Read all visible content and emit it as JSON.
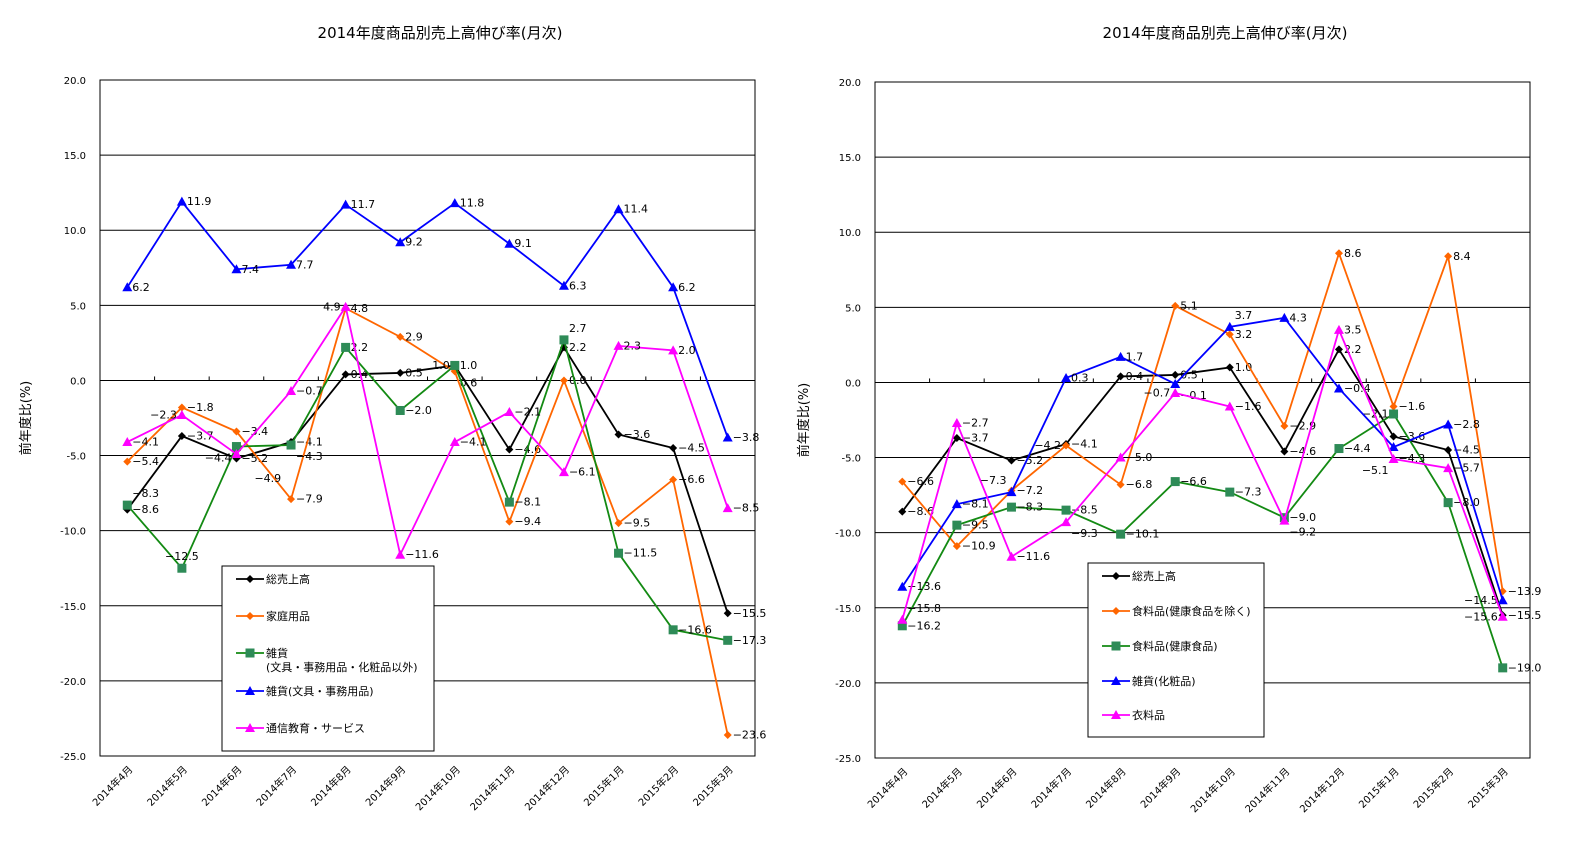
{
  "chart_data": [
    {
      "type": "line",
      "title": "2014年度商品別売上高伸び率(月次)",
      "ylabel": "前年度比(%)",
      "xlabel": "",
      "ylim": [
        -25,
        20
      ],
      "yticks": [
        "20.0",
        "15.0",
        "10.0",
        "5.0",
        "0.0",
        "-5.0",
        "-10.0",
        "-15.0",
        "-20.0",
        "-25.0"
      ],
      "categories": [
        "2014年4月",
        "2014年5月",
        "2014年6月",
        "2014年7月",
        "2014年8月",
        "2014年9月",
        "2014年10月",
        "2014年11月",
        "2014年12月",
        "2015年1月",
        "2015年2月",
        "2015年3月"
      ],
      "grid": true,
      "legend_position": "bottom-center",
      "series": [
        {
          "name": "総売上高",
          "color": "#000000",
          "marker": "diamond",
          "values": [
            -8.6,
            -3.7,
            -5.2,
            -4.1,
            0.4,
            0.5,
            1.0,
            -4.6,
            2.2,
            -3.6,
            -4.5,
            -15.5
          ]
        },
        {
          "name": "家庭用品",
          "color": "#ff6600",
          "marker": "diamond",
          "values": [
            -5.4,
            -1.8,
            -3.4,
            -7.9,
            4.8,
            2.9,
            0.6,
            -9.4,
            0.0,
            -9.5,
            -6.6,
            -23.6
          ]
        },
        {
          "name": "雑貨",
          "name2": "(文具・事務用品・化粧品以外)",
          "color": "#138a13",
          "marker": "square",
          "values": [
            -8.3,
            -12.5,
            -4.4,
            -4.3,
            2.2,
            -2.0,
            1.0,
            -8.1,
            2.7,
            -11.5,
            -16.6,
            -17.3
          ]
        },
        {
          "name": "雑貨(文具・事務用品)",
          "color": "#0000ff",
          "marker": "triangle",
          "values": [
            6.2,
            11.9,
            7.4,
            7.7,
            11.7,
            9.2,
            11.8,
            9.1,
            6.3,
            11.4,
            6.2,
            -3.8
          ]
        },
        {
          "name": "通信教育・サービス",
          "color": "#ff00ff",
          "marker": "triangle",
          "values": [
            -4.1,
            -2.3,
            -4.9,
            -0.7,
            4.9,
            -11.6,
            -4.1,
            -2.1,
            -6.1,
            2.3,
            2.0,
            -8.5
          ]
        }
      ]
    },
    {
      "type": "line",
      "title": "2014年度商品別売上高伸び率(月次)",
      "ylabel": "前年度比(%)",
      "xlabel": "",
      "ylim": [
        -25,
        20
      ],
      "yticks": [
        "20.0",
        "15.0",
        "10.0",
        "5.0",
        "0.0",
        "-5.0",
        "-10.0",
        "-15.0",
        "-20.0",
        "-25.0"
      ],
      "categories": [
        "2014年4月",
        "2014年5月",
        "2014年6月",
        "2014年7月",
        "2014年8月",
        "2014年9月",
        "2014年10月",
        "2014年11月",
        "2014年12月",
        "2015年1月",
        "2015年2月",
        "2015年3月"
      ],
      "grid": true,
      "legend_position": "bottom-center",
      "series": [
        {
          "name": "総売上高",
          "color": "#000000",
          "marker": "diamond",
          "values": [
            -8.6,
            -3.7,
            -5.2,
            -4.1,
            0.4,
            0.5,
            1.0,
            -4.6,
            2.2,
            -3.6,
            -4.5,
            -15.5
          ]
        },
        {
          "name": "食料品(健康食品を除く)",
          "color": "#ff6600",
          "marker": "diamond",
          "values": [
            -6.6,
            -10.9,
            -7.2,
            -4.2,
            -6.8,
            5.1,
            3.2,
            -2.9,
            8.6,
            -1.6,
            8.4,
            -13.9
          ]
        },
        {
          "name": "食料品(健康食品)",
          "color": "#138a13",
          "marker": "square",
          "values": [
            -16.2,
            -9.5,
            -8.3,
            -8.5,
            -10.1,
            -6.6,
            -7.3,
            -9.0,
            -4.4,
            -2.1,
            -8.0,
            -19.0
          ]
        },
        {
          "name": "雑貨(化粧品)",
          "color": "#0000ff",
          "marker": "triangle",
          "values": [
            -13.6,
            -8.1,
            -7.3,
            0.3,
            1.7,
            -0.1,
            3.7,
            4.3,
            -0.4,
            -4.3,
            -2.8,
            -14.5
          ]
        },
        {
          "name": "衣料品",
          "color": "#ff00ff",
          "marker": "triangle",
          "values": [
            -15.8,
            -2.7,
            -11.6,
            -9.3,
            -5.0,
            -0.7,
            -1.6,
            -9.2,
            3.5,
            -5.1,
            -5.7,
            -15.6
          ]
        }
      ]
    }
  ]
}
